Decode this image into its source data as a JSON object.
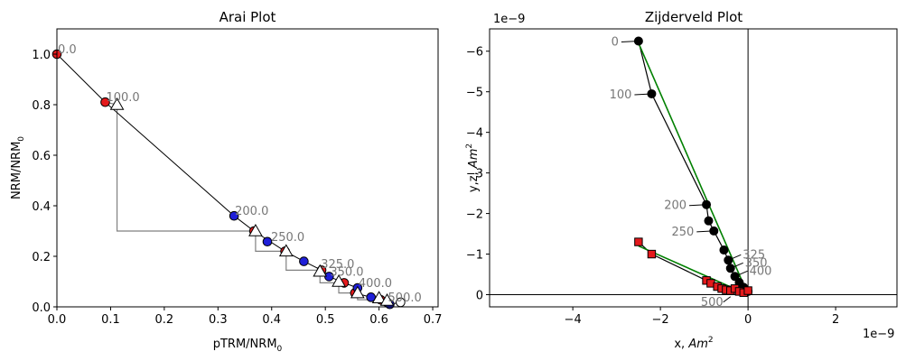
{
  "chart_data": [
    {
      "type": "scatter",
      "title": "Arai Plot",
      "xlabel": "pTRM/NRM",
      "xlabel_sub": "0",
      "ylabel": "NRM/NRM",
      "ylabel_sub": "0",
      "xlim": [
        0,
        0.71
      ],
      "ylim": [
        0,
        1.1
      ],
      "xticks": [
        "0.0",
        "0.1",
        "0.2",
        "0.3",
        "0.4",
        "0.5",
        "0.6",
        "0.7"
      ],
      "xtick_values": [
        0,
        0.1,
        0.2,
        0.3,
        0.4,
        0.5,
        0.6,
        0.7
      ],
      "yticks": [
        "0.0",
        "0.2",
        "0.4",
        "0.6",
        "0.8",
        "1.0"
      ],
      "ytick_values": [
        0,
        0.2,
        0.4,
        0.6,
        0.8,
        1.0
      ],
      "colors": {
        "zi": "#e41a1c",
        "iz": "#1f1fd8",
        "check": "#ffffff",
        "line": "#000000",
        "box": "#808080",
        "label": "#777777"
      },
      "path": [
        [
          0,
          1.0
        ],
        [
          0.09,
          0.81
        ],
        [
          0.33,
          0.36
        ],
        [
          0.367,
          0.3
        ],
        [
          0.425,
          0.22
        ],
        [
          0.46,
          0.18
        ],
        [
          0.493,
          0.145
        ],
        [
          0.507,
          0.12
        ],
        [
          0.535,
          0.095
        ],
        [
          0.56,
          0.075
        ],
        [
          0.555,
          0.055
        ],
        [
          0.585,
          0.038
        ],
        [
          0.603,
          0.028
        ],
        [
          0.615,
          0.018
        ],
        [
          0.62,
          0.01
        ],
        [
          0.64,
          0.018
        ]
      ],
      "series": [
        {
          "name": "zi",
          "marker": "circle",
          "color": "#e41a1c",
          "points": [
            [
              0,
              1.0
            ],
            [
              0.09,
              0.81
            ],
            [
              0.367,
              0.3
            ],
            [
              0.425,
              0.22
            ],
            [
              0.493,
              0.145
            ],
            [
              0.535,
              0.095
            ],
            [
              0.555,
              0.055
            ],
            [
              0.603,
              0.028
            ],
            [
              0.615,
              0.018
            ]
          ]
        },
        {
          "name": "iz",
          "marker": "circle",
          "color": "#1f1fd8",
          "points": [
            [
              0.33,
              0.36
            ],
            [
              0.392,
              0.258
            ],
            [
              0.46,
              0.18
            ],
            [
              0.507,
              0.12
            ],
            [
              0.56,
              0.075
            ],
            [
              0.585,
              0.038
            ],
            [
              0.62,
              0.01
            ]
          ]
        },
        {
          "name": "ptrm-check",
          "marker": "triangle",
          "color": "#ffffff",
          "points": [
            [
              0.112,
              0.8
            ],
            [
              0.37,
              0.3
            ],
            [
              0.427,
              0.22
            ],
            [
              0.49,
              0.14
            ],
            [
              0.525,
              0.1
            ],
            [
              0.56,
              0.055
            ],
            [
              0.6,
              0.035
            ],
            [
              0.615,
              0.025
            ]
          ]
        },
        {
          "name": "open",
          "marker": "circle",
          "color": "#ffffff",
          "points": [
            [
              0.64,
              0.018
            ]
          ]
        }
      ],
      "check_boxes": [
        [
          [
            0.09,
            0.81
          ],
          [
            0.112,
            0.8
          ],
          [
            0.112,
            0.3
          ],
          [
            0.367,
            0.3
          ]
        ],
        [
          [
            0.367,
            0.3
          ],
          [
            0.37,
            0.3
          ],
          [
            0.37,
            0.22
          ],
          [
            0.425,
            0.22
          ]
        ],
        [
          [
            0.425,
            0.22
          ],
          [
            0.427,
            0.22
          ],
          [
            0.427,
            0.145
          ],
          [
            0.493,
            0.145
          ]
        ],
        [
          [
            0.493,
            0.145
          ],
          [
            0.49,
            0.14
          ],
          [
            0.49,
            0.095
          ],
          [
            0.535,
            0.095
          ]
        ],
        [
          [
            0.535,
            0.095
          ],
          [
            0.525,
            0.1
          ],
          [
            0.525,
            0.055
          ],
          [
            0.555,
            0.055
          ]
        ],
        [
          [
            0.555,
            0.055
          ],
          [
            0.56,
            0.055
          ],
          [
            0.56,
            0.028
          ],
          [
            0.603,
            0.028
          ]
        ]
      ],
      "annotations": [
        {
          "text": "0.0",
          "x": 0.0,
          "y": 1.0
        },
        {
          "text": "100.0",
          "x": 0.09,
          "y": 0.81
        },
        {
          "text": "200.0",
          "x": 0.33,
          "y": 0.36
        },
        {
          "text": "250.0",
          "x": 0.397,
          "y": 0.258
        },
        {
          "text": "325.0",
          "x": 0.49,
          "y": 0.15
        },
        {
          "text": "350.0",
          "x": 0.507,
          "y": 0.12
        },
        {
          "text": "400.0",
          "x": 0.56,
          "y": 0.075
        },
        {
          "text": "500.0",
          "x": 0.615,
          "y": 0.018
        }
      ]
    },
    {
      "type": "scatter",
      "title": "Zijderveld Plot",
      "xlabel": "x, ",
      "xlabel_unit": "Am",
      "ylabel": "y,z, ",
      "ylabel_unit": "Am",
      "unit_sup": "2",
      "xscale": "1e−9",
      "yscale": "1e−9",
      "xlim": [
        -5.9,
        3.4
      ],
      "ylim": [
        -6.55,
        0.3
      ],
      "y_inverted": true,
      "xticks": [
        "−4",
        "−2",
        "0",
        "2"
      ],
      "xtick_values": [
        -4,
        -2,
        0,
        2
      ],
      "yticks": [
        "−6",
        "−5",
        "−4",
        "−3",
        "−2",
        "−1",
        "0"
      ],
      "ytick_values": [
        -6,
        -5,
        -4,
        -3,
        -2,
        -1,
        0
      ],
      "colors": {
        "horizontal": "#000000",
        "vertical": "#e41a1c",
        "fit": "#008000",
        "label": "#777777"
      },
      "series": [
        {
          "name": "x-y",
          "marker": "circle",
          "color": "#000000",
          "points": [
            [
              -2.5,
              -6.25
            ],
            [
              -2.2,
              -4.95
            ],
            [
              -0.95,
              -2.22
            ],
            [
              -0.9,
              -1.82
            ],
            [
              -0.78,
              -1.57
            ],
            [
              -0.55,
              -1.1
            ],
            [
              -0.45,
              -0.85
            ],
            [
              -0.4,
              -0.65
            ],
            [
              -0.3,
              -0.45
            ],
            [
              -0.2,
              -0.3
            ],
            [
              -0.1,
              -0.18
            ],
            [
              0.0,
              -0.08
            ]
          ]
        },
        {
          "name": "x-z",
          "marker": "square",
          "color": "#e41a1c",
          "points": [
            [
              -2.5,
              -1.3
            ],
            [
              -2.2,
              -1.0
            ],
            [
              -0.95,
              -0.35
            ],
            [
              -0.85,
              -0.28
            ],
            [
              -0.7,
              -0.2
            ],
            [
              -0.6,
              -0.15
            ],
            [
              -0.5,
              -0.12
            ],
            [
              -0.4,
              -0.1
            ],
            [
              -0.3,
              -0.15
            ],
            [
              -0.2,
              -0.08
            ],
            [
              -0.1,
              -0.05
            ],
            [
              0.0,
              -0.1
            ]
          ]
        }
      ],
      "fits": [
        [
          [
            -2.5,
            -6.2
          ],
          [
            0.0,
            0.0
          ]
        ],
        [
          [
            -2.5,
            -1.2
          ],
          [
            0.0,
            0.0
          ]
        ]
      ],
      "annotations": [
        {
          "text": "0",
          "x": -2.5,
          "y": -6.25,
          "side": "left"
        },
        {
          "text": "100",
          "x": -2.2,
          "y": -4.95,
          "side": "left"
        },
        {
          "text": "200",
          "x": -0.95,
          "y": -2.22,
          "side": "left"
        },
        {
          "text": "250",
          "x": -0.78,
          "y": -1.57,
          "side": "left"
        },
        {
          "text": "325",
          "x": -0.45,
          "y": -0.85,
          "side": "right"
        },
        {
          "text": "350",
          "x": -0.4,
          "y": -0.65,
          "side": "right"
        },
        {
          "text": "400",
          "x": -0.3,
          "y": -0.45,
          "side": "right"
        },
        {
          "text": "500",
          "x": -0.4,
          "y": 0.05,
          "side": "below"
        }
      ]
    }
  ]
}
